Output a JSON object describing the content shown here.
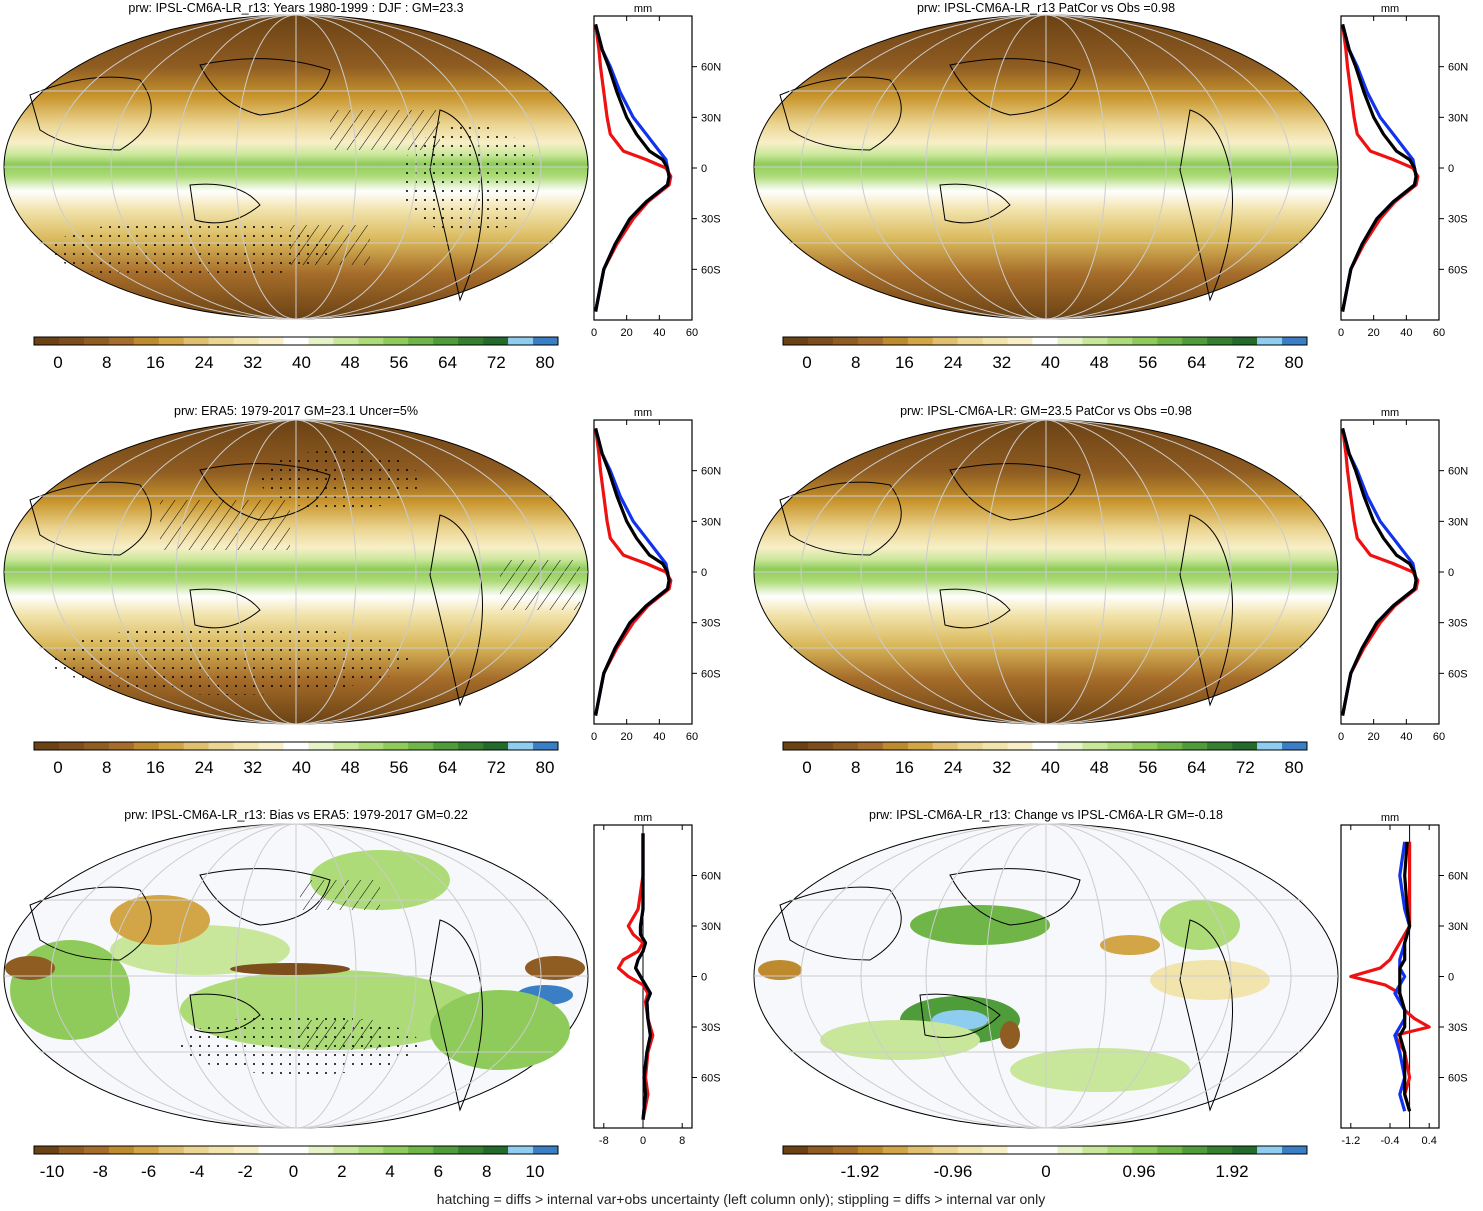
{
  "figure": {
    "caption": "hatching = diffs > internal var+obs uncertainty (left column only); stippling = diffs > internal var only",
    "profile_unit": "mm",
    "lat_labels": [
      "60N",
      "30N",
      "0",
      "30S",
      "60S"
    ]
  },
  "colormaps": {
    "prw": [
      "#6b4214",
      "#7d4e1b",
      "#8f5c22",
      "#a66d2a",
      "#bd8a2e",
      "#d2a646",
      "#e0c070",
      "#ebd592",
      "#f2e4ad",
      "#f8efc8",
      "#ffffff",
      "#e6f3c8",
      "#c9e79a",
      "#addb77",
      "#8fcb5a",
      "#6fb548",
      "#4f9c3a",
      "#357f2e",
      "#236b2a",
      "#8ecdf0",
      "#3a7fc5"
    ],
    "diff": [
      "#6b4214",
      "#8f5c22",
      "#a66d2a",
      "#bd8a2e",
      "#d2a646",
      "#e0c070",
      "#ebd592",
      "#f2e4ad",
      "#f8efc8",
      "#ffffff",
      "#ffffff",
      "#e6f3c8",
      "#c9e79a",
      "#addb77",
      "#8fcb5a",
      "#6fb548",
      "#4f9c3a",
      "#357f2e",
      "#236b2a",
      "#8ecdf0",
      "#3a7fc5"
    ]
  },
  "chart_data": [
    {
      "id": "p1",
      "type": "heatmap",
      "title": "prw: IPSL-CM6A-LR_r13: Years 1980-1999 : DJF : GM=23.3",
      "colorbar_labels": [
        "0",
        "8",
        "16",
        "24",
        "32",
        "40",
        "48",
        "56",
        "64",
        "72",
        "80"
      ],
      "profile": {
        "type": "line",
        "xlim": [
          0,
          60
        ],
        "xticks": [
          "0",
          "20",
          "40",
          "60"
        ],
        "lat": [
          -85,
          -70,
          -60,
          -45,
          -30,
          -20,
          -10,
          -5,
          0,
          5,
          10,
          20,
          30,
          45,
          60,
          70,
          85
        ],
        "series": [
          {
            "color": "#ee1111",
            "values": [
              1,
              4,
              6,
              14,
              24,
              33,
              46,
              47,
              44,
              32,
              18,
              10,
              8,
              6,
              4,
              3,
              1
            ]
          },
          {
            "color": "#1133ee",
            "values": [
              1,
              4,
              6,
              13,
              22,
              32,
              45,
              46,
              45,
              44,
              40,
              32,
              24,
              16,
              10,
              5,
              1
            ]
          },
          {
            "color": "#000000",
            "values": [
              1,
              4,
              6,
              13,
              22,
              32,
              45,
              46,
              45,
              42,
              34,
              26,
              20,
              14,
              9,
              5,
              1
            ]
          }
        ]
      }
    },
    {
      "id": "p2",
      "type": "heatmap",
      "title": "prw: IPSL-CM6A-LR_r13 PatCor vs Obs =0.98",
      "colorbar_labels": [
        "0",
        "8",
        "16",
        "24",
        "32",
        "40",
        "48",
        "56",
        "64",
        "72",
        "80"
      ],
      "profile": {
        "type": "line",
        "xlim": [
          0,
          60
        ],
        "xticks": [
          "0",
          "20",
          "40",
          "60"
        ],
        "lat": [
          -85,
          -70,
          -60,
          -45,
          -30,
          -20,
          -10,
          -5,
          0,
          5,
          10,
          20,
          30,
          45,
          60,
          70,
          85
        ],
        "series": [
          {
            "color": "#ee1111",
            "values": [
              1,
              4,
              6,
              14,
              24,
              33,
              46,
              47,
              44,
              32,
              18,
              10,
              8,
              6,
              4,
              3,
              1
            ]
          },
          {
            "color": "#1133ee",
            "values": [
              1,
              4,
              6,
              13,
              22,
              32,
              45,
              46,
              45,
              44,
              40,
              32,
              24,
              16,
              10,
              5,
              1
            ]
          },
          {
            "color": "#000000",
            "values": [
              1,
              4,
              6,
              13,
              22,
              32,
              45,
              46,
              45,
              42,
              34,
              26,
              20,
              14,
              9,
              5,
              1
            ]
          }
        ]
      }
    },
    {
      "id": "p3",
      "type": "heatmap",
      "title": "prw: ERA5: 1979-2017 GM=23.1 Uncer=5%",
      "colorbar_labels": [
        "0",
        "8",
        "16",
        "24",
        "32",
        "40",
        "48",
        "56",
        "64",
        "72",
        "80"
      ],
      "profile": {
        "type": "line",
        "xlim": [
          0,
          60
        ],
        "xticks": [
          "0",
          "20",
          "40",
          "60"
        ],
        "lat": [
          -85,
          -70,
          -60,
          -45,
          -30,
          -20,
          -10,
          -5,
          0,
          5,
          10,
          20,
          30,
          45,
          60,
          70,
          85
        ],
        "series": [
          {
            "color": "#ee1111",
            "values": [
              1,
              4,
              6,
              14,
              24,
              33,
              46,
              47,
              44,
              32,
              18,
              10,
              8,
              6,
              4,
              3,
              1
            ]
          },
          {
            "color": "#1133ee",
            "values": [
              1,
              4,
              6,
              13,
              22,
              32,
              45,
              46,
              45,
              44,
              40,
              32,
              24,
              16,
              10,
              5,
              1
            ]
          },
          {
            "color": "#000000",
            "values": [
              1,
              4,
              6,
              13,
              22,
              32,
              45,
              46,
              45,
              42,
              34,
              26,
              20,
              14,
              9,
              5,
              1
            ]
          }
        ]
      }
    },
    {
      "id": "p4",
      "type": "heatmap",
      "title": "prw: IPSL-CM6A-LR: GM=23.5 PatCor vs Obs =0.98",
      "colorbar_labels": [
        "0",
        "8",
        "16",
        "24",
        "32",
        "40",
        "48",
        "56",
        "64",
        "72",
        "80"
      ],
      "profile": {
        "type": "line",
        "xlim": [
          0,
          60
        ],
        "xticks": [
          "0",
          "20",
          "40",
          "60"
        ],
        "lat": [
          -85,
          -70,
          -60,
          -45,
          -30,
          -20,
          -10,
          -5,
          0,
          5,
          10,
          20,
          30,
          45,
          60,
          70,
          85
        ],
        "series": [
          {
            "color": "#ee1111",
            "values": [
              1,
              4,
              6,
              14,
              24,
              33,
              46,
              47,
              44,
              32,
              18,
              10,
              8,
              6,
              4,
              3,
              1
            ]
          },
          {
            "color": "#1133ee",
            "values": [
              1,
              4,
              6,
              13,
              22,
              32,
              45,
              46,
              45,
              44,
              40,
              32,
              24,
              16,
              10,
              5,
              1
            ]
          },
          {
            "color": "#000000",
            "values": [
              1,
              4,
              6,
              13,
              22,
              32,
              45,
              46,
              45,
              42,
              34,
              26,
              20,
              14,
              9,
              5,
              1
            ]
          }
        ]
      }
    },
    {
      "id": "p5",
      "type": "heatmap",
      "title": "prw: IPSL-CM6A-LR_r13: Bias vs ERA5: 1979-2017 GM=0.22",
      "colorbar_labels": [
        "-10",
        "-8",
        "-6",
        "-4",
        "-2",
        "0",
        "2",
        "4",
        "6",
        "8",
        "10"
      ],
      "profile": {
        "type": "line",
        "xlim": [
          -10,
          10
        ],
        "xticks": [
          "-8",
          "0",
          "8"
        ],
        "lat": [
          -85,
          -70,
          -60,
          -45,
          -35,
          -25,
          -15,
          -10,
          -5,
          0,
          5,
          10,
          15,
          20,
          25,
          30,
          40,
          60,
          85
        ],
        "series": [
          {
            "color": "#ee1111",
            "values": [
              0,
              1,
              0.5,
              1,
              2,
              1,
              0.5,
              1,
              0,
              -3,
              -5,
              -4,
              -1,
              0,
              -2,
              -3,
              -1,
              0,
              0
            ]
          },
          {
            "color": "#1133ee",
            "values": [
              0,
              0.5,
              0.2,
              0.8,
              1.5,
              1,
              0.8,
              1.5,
              0.5,
              -0.5,
              -1.5,
              -1,
              0,
              0.5,
              -0.5,
              -0.5,
              0,
              0,
              0
            ]
          },
          {
            "color": "#000000",
            "values": [
              0,
              0.5,
              0.2,
              0.8,
              1.5,
              1,
              0.8,
              1.5,
              0.5,
              -0.5,
              -1.5,
              -1,
              0,
              0.5,
              -0.5,
              -0.5,
              0,
              0,
              0
            ]
          }
        ]
      }
    },
    {
      "id": "p6",
      "type": "heatmap",
      "title": "prw: IPSL-CM6A-LR_r13: Change vs IPSL-CM6A-LR GM=-0.18",
      "colorbar_labels": [
        "-1.92",
        "-0.96",
        "0",
        "0.96",
        "1.92"
      ],
      "profile": {
        "type": "line",
        "xlim": [
          -1.4,
          0.6
        ],
        "xticks": [
          "-1.2",
          "-0.4",
          "0.4"
        ],
        "lat": [
          -80,
          -70,
          -60,
          -45,
          -35,
          -30,
          -25,
          -20,
          -10,
          -5,
          0,
          5,
          10,
          20,
          30,
          40,
          60,
          80
        ],
        "series": [
          {
            "color": "#ee1111",
            "values": [
              0,
              -0.1,
              0,
              -0.1,
              -0.3,
              0.4,
              0.1,
              -0.1,
              -0.2,
              -0.5,
              -1.2,
              -0.6,
              -0.4,
              -0.2,
              0,
              0,
              0,
              0
            ]
          },
          {
            "color": "#1133ee",
            "values": [
              -0.1,
              -0.2,
              -0.1,
              -0.2,
              -0.3,
              -0.2,
              -0.1,
              -0.1,
              -0.3,
              -0.2,
              -0.1,
              -0.2,
              -0.2,
              -0.1,
              0,
              -0.1,
              -0.2,
              -0.1
            ]
          },
          {
            "color": "#000000",
            "values": [
              0,
              -0.1,
              -0.1,
              -0.1,
              -0.2,
              -0.1,
              -0.1,
              -0.1,
              -0.2,
              -0.2,
              -0.2,
              -0.2,
              -0.1,
              -0.1,
              0,
              -0.05,
              -0.1,
              -0.05
            ]
          }
        ]
      }
    }
  ]
}
